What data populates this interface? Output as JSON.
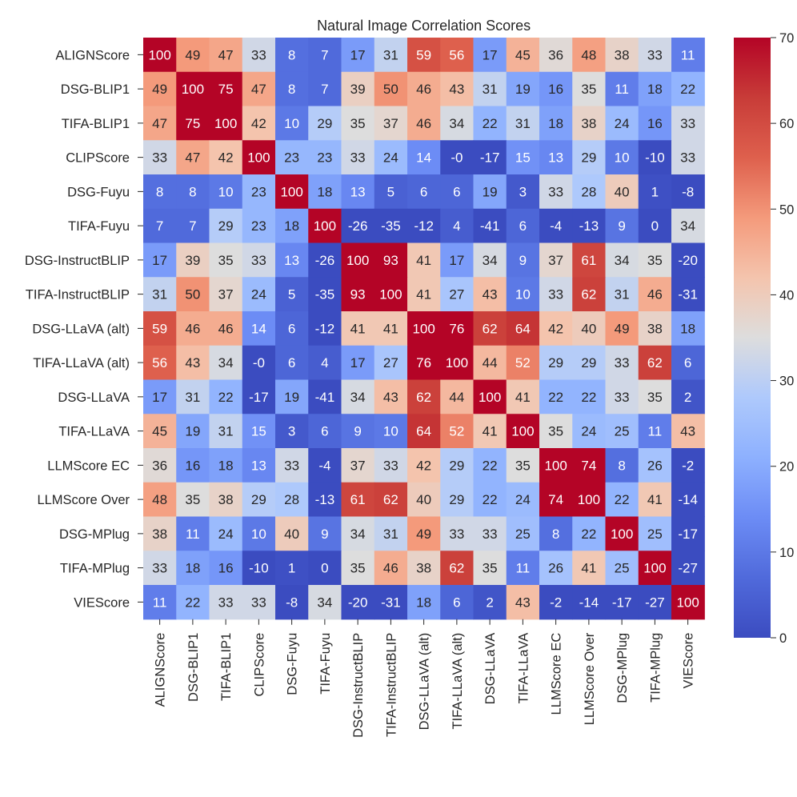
{
  "chart_data": {
    "type": "heatmap",
    "title": "Natural Image Correlation Scores",
    "xlabel": "",
    "ylabel": "",
    "labels": [
      "ALIGNScore",
      "DSG-BLIP1",
      "TIFA-BLIP1",
      "CLIPScore",
      "DSG-Fuyu",
      "TIFA-Fuyu",
      "DSG-InstructBLIP",
      "TIFA-InstructBLIP",
      "DSG-LLaVA (alt)",
      "TIFA-LLaVA (alt)",
      "DSG-LLaVA",
      "TIFA-LLaVA",
      "LLMScore EC",
      "LLMScore Over",
      "DSG-MPlug",
      "TIFA-MPlug",
      "VIEScore"
    ],
    "cell_text": [
      [
        "100",
        "49",
        "47",
        "33",
        "8",
        "7",
        "17",
        "31",
        "59",
        "56",
        "17",
        "45",
        "36",
        "48",
        "38",
        "33",
        "11"
      ],
      [
        "49",
        "100",
        "75",
        "47",
        "8",
        "7",
        "39",
        "50",
        "46",
        "43",
        "31",
        "19",
        "16",
        "35",
        "11",
        "18",
        "22"
      ],
      [
        "47",
        "75",
        "100",
        "42",
        "10",
        "29",
        "35",
        "37",
        "46",
        "34",
        "22",
        "31",
        "18",
        "38",
        "24",
        "16",
        "33"
      ],
      [
        "33",
        "47",
        "42",
        "100",
        "23",
        "23",
        "33",
        "24",
        "14",
        "-0",
        "-17",
        "15",
        "13",
        "29",
        "10",
        "-10",
        "33"
      ],
      [
        "8",
        "8",
        "10",
        "23",
        "100",
        "18",
        "13",
        "5",
        "6",
        "6",
        "19",
        "3",
        "33",
        "28",
        "40",
        "1",
        "-8"
      ],
      [
        "7",
        "7",
        "29",
        "23",
        "18",
        "100",
        "-26",
        "-35",
        "-12",
        "4",
        "-41",
        "6",
        "-4",
        "-13",
        "9",
        "0",
        "34"
      ],
      [
        "17",
        "39",
        "35",
        "33",
        "13",
        "-26",
        "100",
        "93",
        "41",
        "17",
        "34",
        "9",
        "37",
        "61",
        "34",
        "35",
        "-20"
      ],
      [
        "31",
        "50",
        "37",
        "24",
        "5",
        "-35",
        "93",
        "100",
        "41",
        "27",
        "43",
        "10",
        "33",
        "62",
        "31",
        "46",
        "-31"
      ],
      [
        "59",
        "46",
        "46",
        "14",
        "6",
        "-12",
        "41",
        "41",
        "100",
        "76",
        "62",
        "64",
        "42",
        "40",
        "49",
        "38",
        "18"
      ],
      [
        "56",
        "43",
        "34",
        "-0",
        "6",
        "4",
        "17",
        "27",
        "76",
        "100",
        "44",
        "52",
        "29",
        "29",
        "33",
        "62",
        "6"
      ],
      [
        "17",
        "31",
        "22",
        "-17",
        "19",
        "-41",
        "34",
        "43",
        "62",
        "44",
        "100",
        "41",
        "22",
        "22",
        "33",
        "35",
        "2"
      ],
      [
        "45",
        "19",
        "31",
        "15",
        "3",
        "6",
        "9",
        "10",
        "64",
        "52",
        "41",
        "100",
        "35",
        "24",
        "25",
        "11",
        "43"
      ],
      [
        "36",
        "16",
        "18",
        "13",
        "33",
        "-4",
        "37",
        "33",
        "42",
        "29",
        "22",
        "35",
        "100",
        "74",
        "8",
        "26",
        "-2"
      ],
      [
        "48",
        "35",
        "38",
        "29",
        "28",
        "-13",
        "61",
        "62",
        "40",
        "29",
        "22",
        "24",
        "74",
        "100",
        "22",
        "41",
        "-14"
      ],
      [
        "38",
        "11",
        "24",
        "10",
        "40",
        "9",
        "34",
        "31",
        "49",
        "33",
        "33",
        "25",
        "8",
        "22",
        "100",
        "25",
        "-17"
      ],
      [
        "33",
        "18",
        "16",
        "-10",
        "1",
        "0",
        "35",
        "46",
        "38",
        "62",
        "35",
        "11",
        "26",
        "41",
        "25",
        "100",
        "-27"
      ],
      [
        "11",
        "22",
        "33",
        "33",
        "-8",
        "34",
        "-20",
        "-31",
        "18",
        "6",
        "2",
        "43",
        "-2",
        "-14",
        "-17",
        "-27",
        "100"
      ]
    ],
    "colormap": "coolwarm",
    "vmin": 0,
    "vmax": 70,
    "colorbar": {
      "ticks": [
        "0",
        "10",
        "20",
        "30",
        "40",
        "50",
        "60",
        "70"
      ]
    },
    "colors": {
      "low": "#3b4cc0",
      "mid": "#dddddd",
      "high": "#b40426",
      "text_dark": "#262626",
      "text_light": "#ffffff"
    }
  }
}
